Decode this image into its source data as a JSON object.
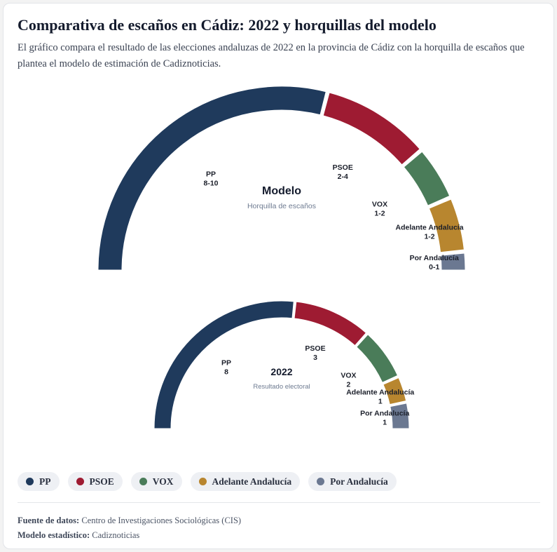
{
  "header": {
    "title": "Comparativa de escaños en Cádiz: 2022 y horquillas del modelo",
    "subtitle": "El gráfico compara el resultado de las elecciones andaluzas de 2022 en la provincia de Cádiz con la horquilla de escaños que plantea el modelo de estimación de Cadiznoticias."
  },
  "colors": {
    "PP": "#1f3a5c",
    "PSOE": "#9e1b32",
    "VOX": "#4a7c59",
    "Adelante Andalucía": "#b8862f",
    "Por Andalucía": "#6b7891"
  },
  "chart_data": [
    {
      "type": "semicircle",
      "center_title": "Modelo",
      "center_subtitle": "Horquilla de escaños",
      "segments": [
        {
          "party": "PP",
          "label": "8-10",
          "min": 8,
          "max": 10
        },
        {
          "party": "PSOE",
          "label": "2-4",
          "min": 2,
          "max": 4
        },
        {
          "party": "VOX",
          "label": "1-2",
          "min": 1,
          "max": 2
        },
        {
          "party": "Adelante Andalucía",
          "label": "1-2",
          "min": 1,
          "max": 2
        },
        {
          "party": "Por Andalucía",
          "label": "0-1",
          "min": 0,
          "max": 1
        }
      ]
    },
    {
      "type": "semicircle",
      "center_title": "2022",
      "center_subtitle": "Resultado electoral",
      "segments": [
        {
          "party": "PP",
          "label": "8",
          "value": 8
        },
        {
          "party": "PSOE",
          "label": "3",
          "value": 3
        },
        {
          "party": "VOX",
          "label": "2",
          "value": 2
        },
        {
          "party": "Adelante Andalucía",
          "label": "1",
          "value": 1
        },
        {
          "party": "Por Andalucía",
          "label": "1",
          "value": 1
        }
      ]
    }
  ],
  "legend": {
    "items": [
      {
        "label": "PP"
      },
      {
        "label": "PSOE"
      },
      {
        "label": "VOX"
      },
      {
        "label": "Adelante Andalucía"
      },
      {
        "label": "Por Andalucía"
      }
    ]
  },
  "footer": {
    "source_label": "Fuente de datos:",
    "source_value": "Centro de Investigaciones Sociológicas (CIS)",
    "model_label": "Modelo estadístico:",
    "model_value": "Cadiznoticias"
  }
}
